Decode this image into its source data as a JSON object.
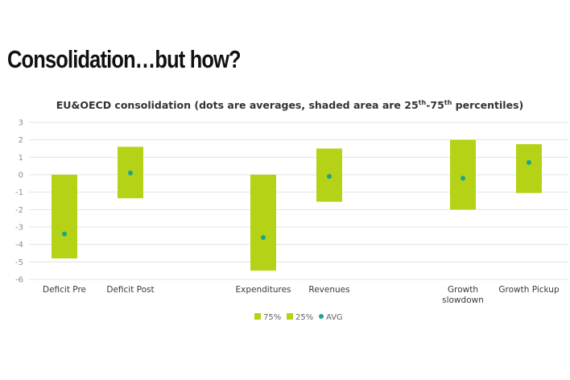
{
  "slide": {
    "title": "Consolidation…but how?"
  },
  "colors": {
    "band": "#b5d216",
    "dot": "#17a68f",
    "grid": "#e3e3e3",
    "text": "#333333"
  },
  "chart_data": {
    "type": "range-bar",
    "title": "EU&OECD consolidation (dots are averages, shaded area are 25th-75th percentiles)",
    "title_parts": {
      "prefix": "EU&OECD consolidation (dots are averages, shaded area are 25",
      "sup1": "th",
      "middle": "-75",
      "sup2": "th",
      "suffix": " percentiles)"
    },
    "ylim": [
      -6,
      3
    ],
    "yticks": [
      3,
      2,
      1,
      0,
      -1,
      -2,
      -3,
      -4,
      -5,
      -6
    ],
    "ytick_labels": [
      "3",
      "2",
      "1",
      "0",
      "-1",
      "-2",
      "-3",
      "-4",
      "-5",
      "-6"
    ],
    "grid": true,
    "categories": [
      {
        "name": "Deficit Pre",
        "lines": [
          "Deficit Pre"
        ],
        "p25": -4.8,
        "p75": 0.0,
        "avg": -3.4
      },
      {
        "name": "Deficit Post",
        "lines": [
          "Deficit Post"
        ],
        "p25": -1.35,
        "p75": 1.6,
        "avg": 0.1
      },
      {
        "name": "Expenditures",
        "lines": [
          "Expenditures"
        ],
        "p25": -5.5,
        "p75": 0.0,
        "avg": -3.6
      },
      {
        "name": "Revenues",
        "lines": [
          "Revenues"
        ],
        "p25": -1.55,
        "p75": 1.5,
        "avg": -0.1
      },
      {
        "name": "Growth slowdown",
        "lines": [
          "Growth",
          "slowdown"
        ],
        "p25": -2.0,
        "p75": 2.0,
        "avg": -0.2
      },
      {
        "name": "Growth Pickup",
        "lines": [
          "Growth Pickup"
        ],
        "p25": -1.05,
        "p75": 1.75,
        "avg": 0.7
      }
    ],
    "legend": {
      "position": "bottom",
      "items": [
        "75%",
        "25%",
        "AVG"
      ]
    }
  }
}
